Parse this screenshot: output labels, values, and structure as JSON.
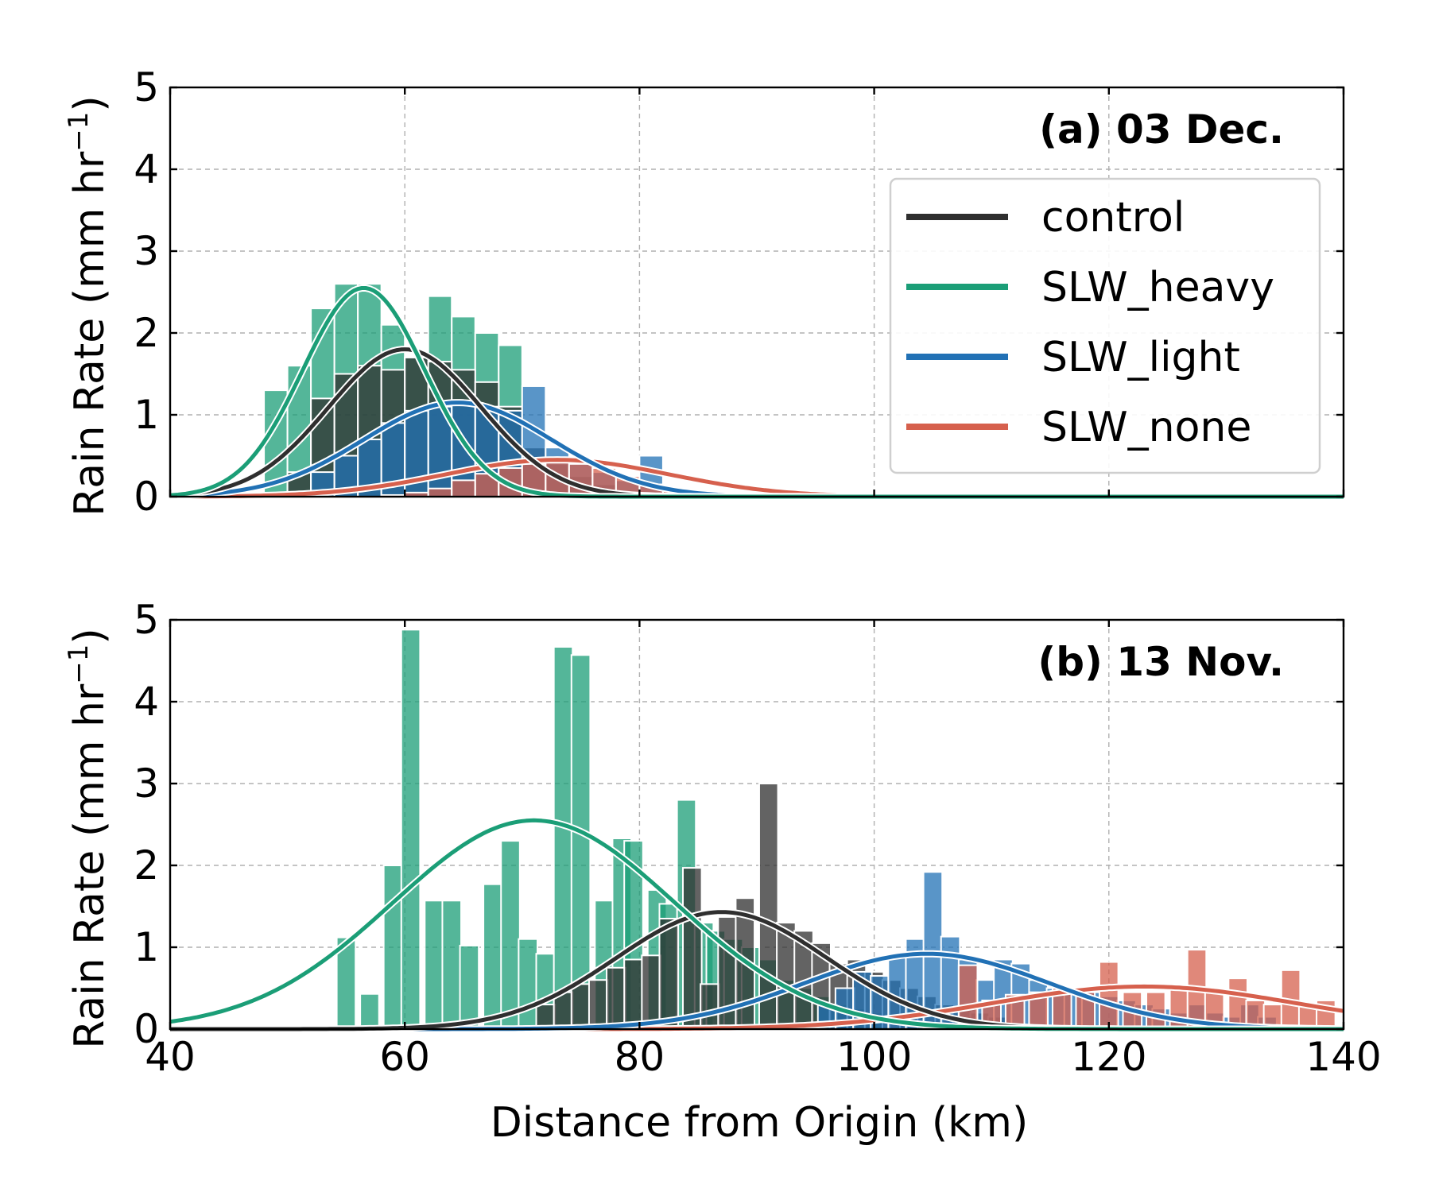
{
  "xlabel": "Distance from Origin (km)",
  "ylabel_text": "Rain Rate (mm hr",
  "ylabel_sup": "−1",
  "ylabel_close": ")",
  "colors": {
    "control": "#2f2f2f",
    "SLW_heavy": "#1b9e77",
    "SLW_light": "#2171b5",
    "SLW_none": "#d6604d"
  },
  "chart_data": [
    {
      "type": "bar",
      "panel_label": "(a) 03 Dec.",
      "xlim": [
        40,
        140
      ],
      "ylim": [
        0,
        5
      ],
      "xticks": [
        40,
        60,
        80,
        100,
        120,
        140
      ],
      "xtick_labels_visible": false,
      "yticks": [
        0,
        1,
        2,
        3,
        4,
        5
      ],
      "grid": true,
      "bin_width": 2,
      "legend": {
        "position": "upper-right",
        "entries": [
          "control",
          "SLW_heavy",
          "SLW_light",
          "SLW_none"
        ]
      },
      "series": [
        {
          "name": "SLW_heavy",
          "bins": [
            [
              49,
              1.3
            ],
            [
              51,
              1.6
            ],
            [
              53,
              2.3
            ],
            [
              55,
              2.6
            ],
            [
              57,
              2.6
            ],
            [
              59,
              2.1
            ],
            [
              61,
              1.7
            ],
            [
              63,
              2.45
            ],
            [
              65,
              2.2
            ],
            [
              67,
              2.0
            ],
            [
              69,
              1.85
            ]
          ],
          "curve": {
            "kind": "gaussian",
            "peak": 2.55,
            "mu": 56.5,
            "sigma": 5.2
          }
        },
        {
          "name": "control",
          "bins": [
            [
              51,
              0.3
            ],
            [
              53,
              1.2
            ],
            [
              55,
              1.5
            ],
            [
              57,
              1.6
            ],
            [
              59,
              1.55
            ],
            [
              61,
              1.7
            ],
            [
              63,
              1.65
            ],
            [
              65,
              1.55
            ],
            [
              67,
              1.4
            ],
            [
              69,
              1.1
            ],
            [
              71,
              0.6
            ],
            [
              73,
              0.4
            ],
            [
              75,
              0.25
            ],
            [
              77,
              0.15
            ]
          ],
          "curve": {
            "kind": "gaussian",
            "peak": 1.8,
            "mu": 60,
            "sigma": 6.5
          }
        },
        {
          "name": "SLW_light",
          "bins": [
            [
              53,
              0.3
            ],
            [
              55,
              0.5
            ],
            [
              57,
              0.7
            ],
            [
              59,
              0.9
            ],
            [
              61,
              1.05
            ],
            [
              63,
              1.1
            ],
            [
              65,
              1.15
            ],
            [
              67,
              1.1
            ],
            [
              69,
              1.05
            ],
            [
              71,
              1.35
            ],
            [
              73,
              0.6
            ],
            [
              75,
              0.45
            ],
            [
              77,
              0.3
            ],
            [
              79,
              0.2
            ],
            [
              81,
              0.5
            ]
          ],
          "curve": {
            "kind": "gaussian",
            "peak": 1.15,
            "mu": 64.5,
            "sigma": 8
          }
        },
        {
          "name": "SLW_none",
          "bins": [
            [
              59,
              0.02
            ],
            [
              61,
              0.05
            ],
            [
              63,
              0.1
            ],
            [
              65,
              0.2
            ],
            [
              67,
              0.28
            ],
            [
              69,
              0.35
            ],
            [
              71,
              0.4
            ],
            [
              73,
              0.42
            ],
            [
              75,
              0.4
            ],
            [
              77,
              0.35
            ],
            [
              79,
              0.25
            ],
            [
              81,
              0.15
            ],
            [
              83,
              0.1
            ],
            [
              85,
              0.05
            ],
            [
              91,
              0.1
            ]
          ],
          "curve": {
            "kind": "gaussian",
            "peak": 0.45,
            "mu": 73,
            "sigma": 9.5
          }
        }
      ]
    },
    {
      "type": "bar",
      "panel_label": "(b) 13 Nov.",
      "xlim": [
        40,
        140
      ],
      "ylim": [
        0,
        5
      ],
      "xticks": [
        40,
        60,
        80,
        100,
        120,
        140
      ],
      "xtick_labels": [
        "40",
        "60",
        "80",
        "100",
        "120",
        "140"
      ],
      "xtick_labels_visible": true,
      "yticks": [
        0,
        1,
        2,
        3,
        4,
        5
      ],
      "grid": true,
      "bin_width": 1.6,
      "series": [
        {
          "name": "SLW_heavy",
          "bins": [
            [
              55,
              1.12
            ],
            [
              57,
              0.43
            ],
            [
              59,
              2.0
            ],
            [
              60.5,
              4.88
            ],
            [
              62.5,
              1.57
            ],
            [
              64,
              1.57
            ],
            [
              65.5,
              1.02
            ],
            [
              67.5,
              1.77
            ],
            [
              69,
              2.3
            ],
            [
              70.5,
              1.1
            ],
            [
              72,
              0.92
            ],
            [
              73.5,
              4.67
            ],
            [
              75,
              4.57
            ],
            [
              77,
              1.57
            ],
            [
              78.5,
              2.33
            ],
            [
              79.5,
              2.3
            ],
            [
              81.5,
              1.7
            ],
            [
              82.5,
              1.53
            ],
            [
              84,
              2.8
            ],
            [
              85.5,
              1.3
            ],
            [
              86.5,
              1.2
            ],
            [
              88,
              1.1
            ],
            [
              89.5,
              1.0
            ],
            [
              91,
              0.85
            ],
            [
              92.5,
              0.6
            ],
            [
              94,
              0.5
            ],
            [
              95.5,
              0.4
            ],
            [
              97,
              0.3
            ],
            [
              98.5,
              0.25
            ],
            [
              100,
              0.2
            ]
          ],
          "curve": {
            "kind": "gaussian",
            "peak": 2.55,
            "mu": 71,
            "sigma": 12
          }
        },
        {
          "name": "control",
          "bins": [
            [
              72,
              0.3
            ],
            [
              73.5,
              0.45
            ],
            [
              75,
              0.55
            ],
            [
              76.5,
              0.6
            ],
            [
              78,
              0.75
            ],
            [
              79.5,
              0.85
            ],
            [
              81,
              0.9
            ],
            [
              82.5,
              1.35
            ],
            [
              84.5,
              1.97
            ],
            [
              86,
              0.55
            ],
            [
              87.5,
              1.37
            ],
            [
              89,
              1.6
            ],
            [
              91,
              3.0
            ],
            [
              92.5,
              1.3
            ],
            [
              94,
              1.2
            ],
            [
              95.5,
              1.05
            ],
            [
              97,
              0.8
            ],
            [
              98.5,
              0.85
            ],
            [
              100,
              0.7
            ],
            [
              101.5,
              0.6
            ],
            [
              103,
              0.5
            ],
            [
              104.5,
              0.4
            ],
            [
              106,
              0.3
            ],
            [
              107.5,
              0.25
            ],
            [
              109,
              0.2
            ],
            [
              110.5,
              0.15
            ]
          ],
          "curve": {
            "kind": "gaussian",
            "peak": 1.43,
            "mu": 87,
            "sigma": 9
          }
        },
        {
          "name": "SLW_light",
          "bins": [
            [
              96,
              0.3
            ],
            [
              97.5,
              0.5
            ],
            [
              99,
              0.7
            ],
            [
              100.5,
              0.65
            ],
            [
              102,
              0.9
            ],
            [
              103.5,
              1.1
            ],
            [
              105,
              1.92
            ],
            [
              106.5,
              1.13
            ],
            [
              108,
              0.85
            ],
            [
              109.5,
              0.6
            ],
            [
              111,
              0.85
            ],
            [
              112.5,
              0.8
            ],
            [
              114,
              0.6
            ],
            [
              115.5,
              0.5
            ],
            [
              117,
              0.5
            ],
            [
              118.5,
              0.45
            ],
            [
              120,
              0.4
            ],
            [
              121.5,
              0.35
            ],
            [
              123,
              0.3
            ],
            [
              124.5,
              0.25
            ],
            [
              126,
              0.2
            ],
            [
              127.5,
              0.3
            ],
            [
              129,
              0.2
            ],
            [
              130.5,
              0.15
            ],
            [
              132,
              0.3
            ],
            [
              133.5,
              0.15
            ]
          ],
          "curve": {
            "kind": "gaussian",
            "peak": 0.92,
            "mu": 104.5,
            "sigma": 10.5
          }
        },
        {
          "name": "SLW_none",
          "bins": [
            [
              108,
              0.78
            ],
            [
              110,
              0.35
            ],
            [
              112,
              0.42
            ],
            [
              114,
              0.45
            ],
            [
              116,
              0.5
            ],
            [
              118,
              0.45
            ],
            [
              120,
              0.82
            ],
            [
              122,
              0.45
            ],
            [
              124,
              0.45
            ],
            [
              126,
              0.5
            ],
            [
              127.5,
              0.97
            ],
            [
              129,
              0.45
            ],
            [
              131,
              0.62
            ],
            [
              132.5,
              0.35
            ],
            [
              134,
              0.3
            ],
            [
              135.5,
              0.72
            ],
            [
              137,
              0.3
            ],
            [
              138.5,
              0.35
            ]
          ],
          "curve": {
            "kind": "gaussian",
            "peak": 0.52,
            "mu": 123,
            "sigma": 13
          }
        }
      ]
    }
  ]
}
